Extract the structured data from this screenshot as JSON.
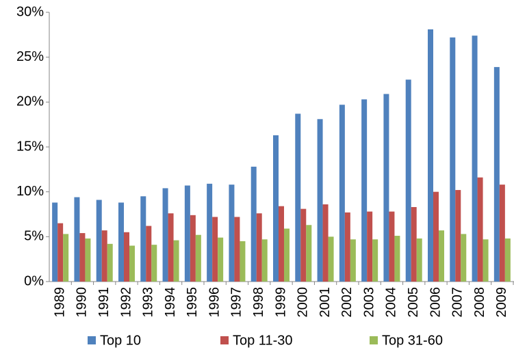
{
  "chart_data": {
    "type": "bar",
    "categories": [
      "1989",
      "1990",
      "1991",
      "1992",
      "1993",
      "1994",
      "1995",
      "1996",
      "1997",
      "1998",
      "1999",
      "2000",
      "2001",
      "2002",
      "2003",
      "2004",
      "2005",
      "2006",
      "2007",
      "2008",
      "2009"
    ],
    "series": [
      {
        "name": "Top 10",
        "color": "#4f81bd",
        "values": [
          8.8,
          9.4,
          9.1,
          8.8,
          9.5,
          10.4,
          10.7,
          10.9,
          10.8,
          12.8,
          16.3,
          18.7,
          18.1,
          19.7,
          20.3,
          20.9,
          22.5,
          28.1,
          27.2,
          27.4,
          23.9
        ]
      },
      {
        "name": "Top 11-30",
        "color": "#c0504d",
        "values": [
          6.5,
          5.4,
          5.7,
          5.5,
          6.2,
          7.6,
          7.4,
          7.2,
          7.2,
          7.6,
          8.4,
          8.1,
          8.6,
          7.7,
          7.8,
          7.8,
          8.3,
          10.0,
          10.2,
          11.6,
          10.8
        ]
      },
      {
        "name": "Top 31-60",
        "color": "#9bbb59",
        "values": [
          5.3,
          4.8,
          4.2,
          4.0,
          4.1,
          4.6,
          5.2,
          4.9,
          4.5,
          4.7,
          5.9,
          6.3,
          5.0,
          4.7,
          4.7,
          5.1,
          4.8,
          5.7,
          5.3,
          4.7,
          4.8
        ]
      }
    ],
    "ylim": [
      0,
      30
    ],
    "yticks": [
      {
        "value": 0,
        "label": "0%"
      },
      {
        "value": 5,
        "label": "5%"
      },
      {
        "value": 10,
        "label": "10%"
      },
      {
        "value": 15,
        "label": "15%"
      },
      {
        "value": 20,
        "label": "20%"
      },
      {
        "value": 25,
        "label": "25%"
      },
      {
        "value": 30,
        "label": "30%"
      }
    ],
    "legend": "bottom"
  }
}
